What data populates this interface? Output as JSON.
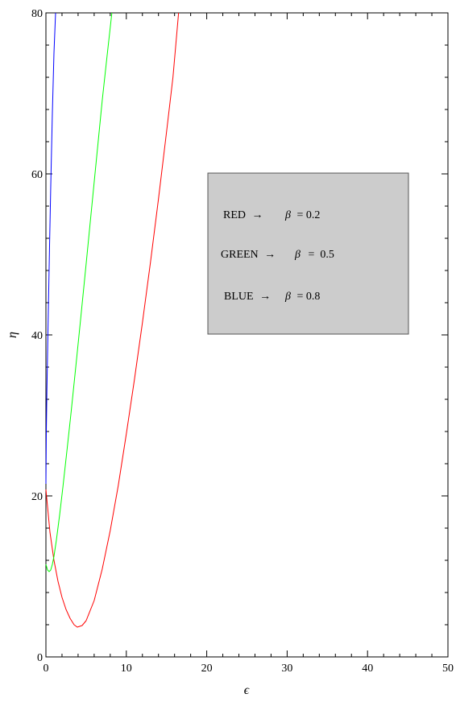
{
  "chart_data": {
    "type": "line",
    "xlabel": "ϵ",
    "ylabel": "η",
    "xlim": [
      0,
      50
    ],
    "ylim": [
      0,
      80
    ],
    "x_ticks": [
      "0",
      "10",
      "20",
      "30",
      "40",
      "50"
    ],
    "y_ticks": [
      "0",
      "20",
      "40",
      "60",
      "80"
    ],
    "grid": false,
    "legend": {
      "placement": "center-right",
      "background": "#cccccc",
      "entries": [
        {
          "color_word": "RED",
          "arrow": "→",
          "symbol": "β",
          "eq": "= 0.2"
        },
        {
          "color_word": "GREEN",
          "arrow": "→",
          "symbol": "β",
          "eq": "=  0.5"
        },
        {
          "color_word": "BLUE",
          "arrow": "→",
          "symbol": "β",
          "eq": "= 0.8"
        }
      ]
    },
    "series": [
      {
        "color": "#ff0000",
        "x": [
          0,
          0.5,
          1,
          1.5,
          2,
          2.5,
          3,
          3.5,
          3.9,
          4.5,
          5,
          6,
          7,
          8,
          9,
          10,
          11,
          12,
          13,
          14,
          15,
          15.8,
          16.5
        ],
        "y": [
          20.8,
          15.5,
          12.0,
          9.4,
          7.4,
          5.9,
          4.8,
          4.0,
          3.7,
          3.9,
          4.5,
          7.0,
          10.9,
          15.7,
          21.3,
          27.7,
          34.4,
          41.5,
          49.0,
          56.9,
          65.2,
          72.0,
          80.0
        ]
      },
      {
        "color": "#00ff00",
        "x": [
          0,
          0.2,
          0.4,
          0.6,
          0.8,
          1.0,
          1.3,
          1.7,
          2.1,
          2.6,
          3.1,
          3.7,
          4.3,
          5.0,
          5.6,
          6.3,
          7.0,
          7.6,
          8.2
        ],
        "y": [
          11.5,
          10.8,
          10.6,
          10.8,
          11.5,
          12.5,
          14.5,
          17.6,
          21.0,
          25.5,
          30.1,
          35.9,
          41.8,
          48.8,
          54.9,
          62.0,
          69.1,
          74.6,
          80.0
        ]
      },
      {
        "color": "#0000ff",
        "x": [
          0,
          0.05,
          0.12,
          0.2,
          0.3,
          0.45,
          0.6,
          0.8,
          1.0,
          1.2
        ],
        "y": [
          21.5,
          28.0,
          33.0,
          37.5,
          43.0,
          51.0,
          58.5,
          67.5,
          75.0,
          80.0
        ]
      }
    ]
  }
}
